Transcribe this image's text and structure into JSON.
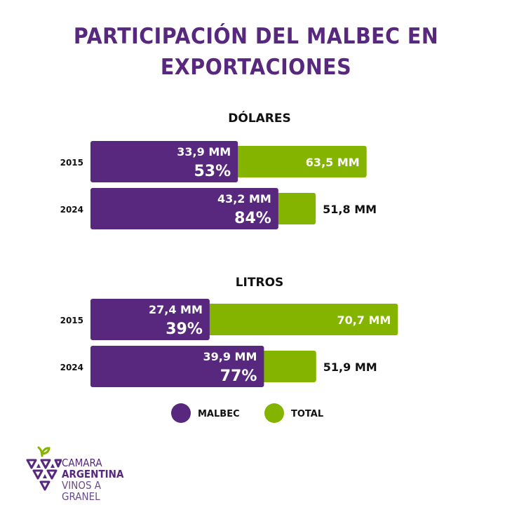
{
  "colors": {
    "malbec": "#57287d",
    "total": "#84b300",
    "text_dark": "#111111",
    "text_light": "#ffffff"
  },
  "chart_data": [
    {
      "type": "bar",
      "title": "DÓLARES",
      "categories": [
        "2015",
        "2024"
      ],
      "series": [
        {
          "name": "MALBEC",
          "values": [
            33.9,
            43.2
          ],
          "labels": [
            "33,9 MM",
            "43,2 MM"
          ],
          "percent_labels": [
            "53%",
            "84%"
          ]
        },
        {
          "name": "TOTAL",
          "values": [
            63.5,
            51.8
          ],
          "labels": [
            "63,5 MM",
            "51,8 MM"
          ]
        }
      ]
    },
    {
      "type": "bar",
      "title": "LITROS",
      "categories": [
        "2015",
        "2024"
      ],
      "series": [
        {
          "name": "MALBEC",
          "values": [
            27.4,
            39.9
          ],
          "labels": [
            "27,4 MM",
            "39,9 MM"
          ],
          "percent_labels": [
            "39%",
            "77%"
          ]
        },
        {
          "name": "TOTAL",
          "values": [
            70.7,
            51.9
          ],
          "labels": [
            "70,7 MM",
            "51,9 MM"
          ]
        }
      ]
    }
  ],
  "header": {
    "title_line1": "PARTICIPACIÓN DEL MALBEC EN",
    "title_line2": "EXPORTACIONES"
  },
  "legend": {
    "items": [
      {
        "label": "MALBEC",
        "color": "#57287d"
      },
      {
        "label": "TOTAL",
        "color": "#84b300"
      }
    ],
    "position": "bottom"
  },
  "logo": {
    "line1": "CAMARA",
    "line2": "ARGENTINA",
    "line3": "VINOS A GRANEL",
    "leaf_color": "#84b300"
  }
}
